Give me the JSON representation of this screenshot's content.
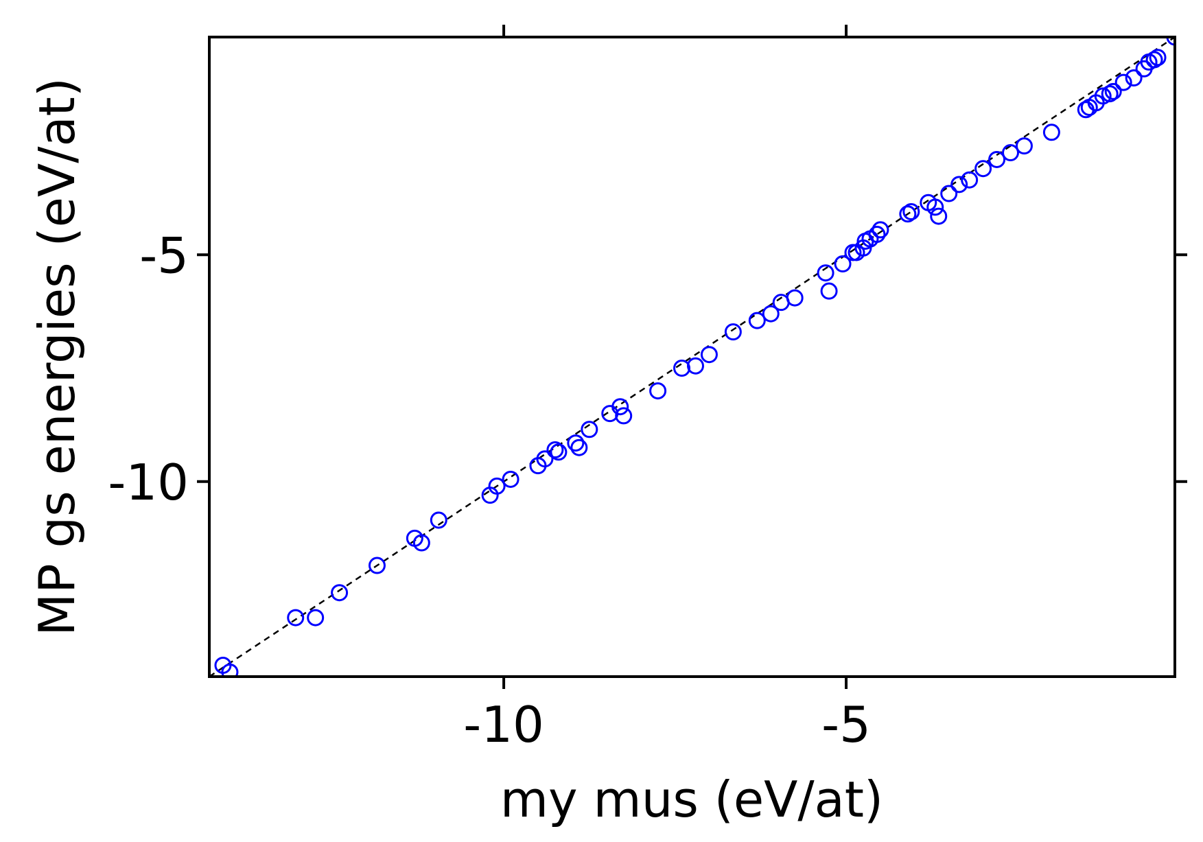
{
  "chart_data": {
    "type": "scatter",
    "title": "",
    "xlabel": "my mus (eV/at)",
    "ylabel": "MP gs energies (eV/at)",
    "xlim": [
      -14.3,
      -0.2
    ],
    "ylim": [
      -14.3,
      -0.2
    ],
    "xticks": [
      -10,
      -5
    ],
    "yticks": [
      -10,
      -5
    ],
    "xtick_labels": [
      "-10",
      "-5"
    ],
    "ytick_labels": [
      "-10",
      "-5"
    ],
    "grid": false,
    "ticks_mirrored": true,
    "marker": "open-circle",
    "marker_color": "#0000ff",
    "reference_line": {
      "style": "dashed",
      "color": "#000000",
      "from": [
        -14.3,
        -14.3
      ],
      "to": [
        -0.2,
        -0.2
      ]
    },
    "series": [
      {
        "x": [
          -14.1,
          -14.0,
          -13.04,
          -12.75,
          -12.4,
          -11.85,
          -11.3,
          -11.2,
          -10.95,
          -10.2,
          -10.1,
          -9.9,
          -9.5,
          -9.4,
          -9.25,
          -9.2,
          -8.95,
          -8.9,
          -8.75,
          -8.45,
          -8.3,
          -8.25,
          -7.75,
          -7.4,
          -7.2,
          -7.0,
          -6.65,
          -6.3,
          -6.1,
          -5.95,
          -5.75,
          -5.3,
          -5.25,
          -5.05,
          -4.9,
          -4.85,
          -4.75,
          -4.72,
          -4.65,
          -4.55,
          -4.5,
          -4.1,
          -4.05,
          -3.8,
          -3.7,
          -3.65,
          -3.5,
          -3.35,
          -3.2,
          -3.0,
          -2.8,
          -2.6,
          -2.4,
          -2.0,
          -1.5,
          -1.45,
          -1.35,
          -1.25,
          -1.15,
          -1.1,
          -0.95,
          -0.8,
          -0.65,
          -0.58,
          -0.5,
          -0.45,
          -0.2
        ],
        "y": [
          -14.05,
          -14.2,
          -13.0,
          -13.0,
          -12.45,
          -11.85,
          -11.25,
          -11.35,
          -10.85,
          -10.3,
          -10.1,
          -9.95,
          -9.65,
          -9.5,
          -9.3,
          -9.35,
          -9.15,
          -9.25,
          -8.85,
          -8.5,
          -8.35,
          -8.55,
          -8.0,
          -7.5,
          -7.45,
          -7.2,
          -6.7,
          -6.45,
          -6.3,
          -6.05,
          -5.95,
          -5.4,
          -5.8,
          -5.2,
          -4.95,
          -4.95,
          -4.85,
          -4.7,
          -4.65,
          -4.55,
          -4.45,
          -4.1,
          -4.05,
          -3.85,
          -3.95,
          -4.15,
          -3.65,
          -3.45,
          -3.35,
          -3.1,
          -2.9,
          -2.75,
          -2.6,
          -2.3,
          -1.8,
          -1.75,
          -1.65,
          -1.5,
          -1.45,
          -1.4,
          -1.2,
          -1.1,
          -0.9,
          -0.75,
          -0.7,
          -0.65,
          -0.2
        ]
      }
    ]
  }
}
